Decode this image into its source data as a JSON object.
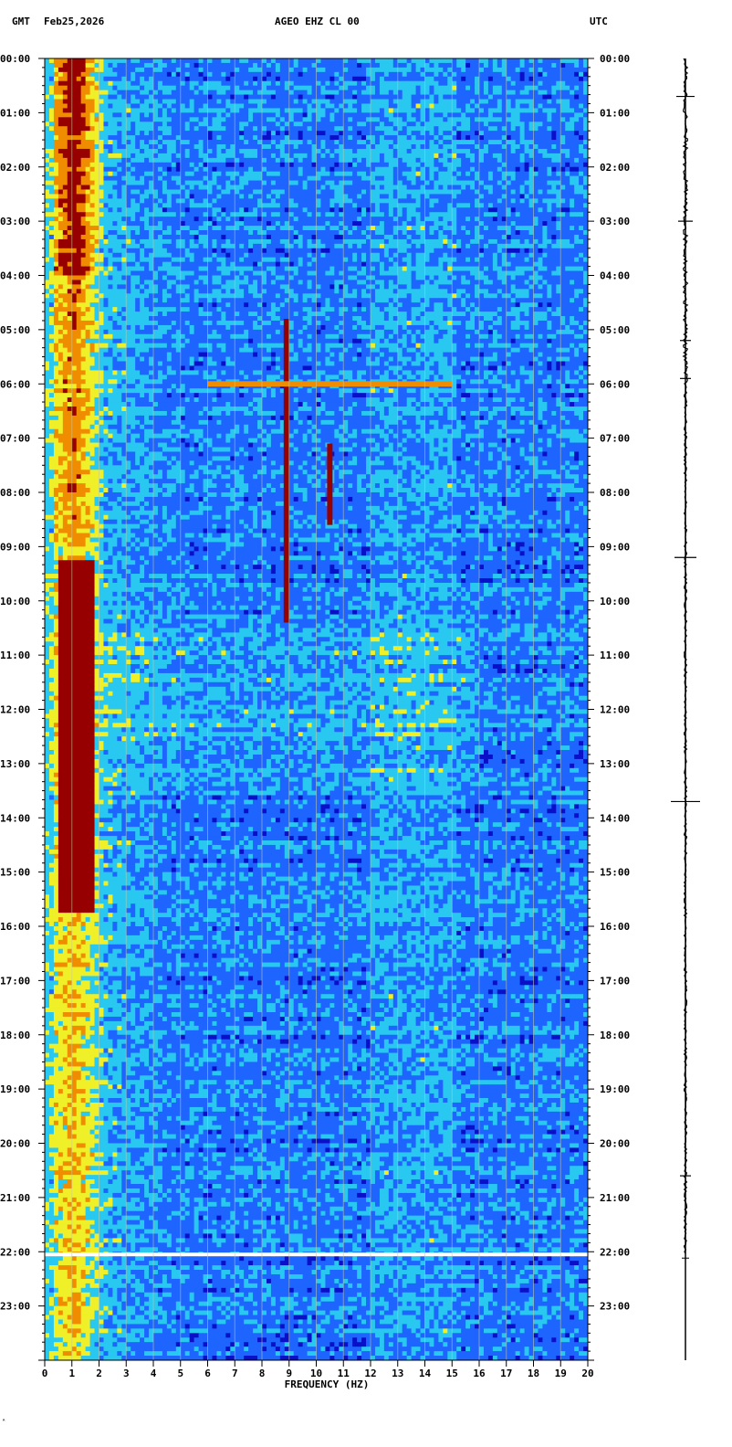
{
  "header": {
    "left_zone": "GMT",
    "date": "Feb25,2026",
    "station": "AGEO EHZ CL 00",
    "right_zone": "UTC"
  },
  "corner_mark": "ᴬ",
  "chart_data": {
    "type": "heatmap",
    "title": "AGEO EHZ CL 00",
    "xlabel": "FREQUENCY (HZ)",
    "ylabel": "",
    "xlim": [
      0,
      20
    ],
    "ylim_hours": [
      0,
      24
    ],
    "x_ticks": [
      "0",
      "1",
      "2",
      "3",
      "4",
      "5",
      "6",
      "7",
      "8",
      "9",
      "10",
      "11",
      "12",
      "13",
      "14",
      "15",
      "16",
      "17",
      "18",
      "19",
      "20"
    ],
    "y_ticks_left": [
      "00:00",
      "01:00",
      "02:00",
      "03:00",
      "04:00",
      "05:00",
      "06:00",
      "07:00",
      "08:00",
      "09:00",
      "10:00",
      "11:00",
      "12:00",
      "13:00",
      "14:00",
      "15:00",
      "16:00",
      "17:00",
      "18:00",
      "19:00",
      "20:00",
      "21:00",
      "22:00",
      "23:00"
    ],
    "y_ticks_right": [
      "00:00",
      "01:00",
      "02:00",
      "03:00",
      "04:00",
      "05:00",
      "06:00",
      "07:00",
      "08:00",
      "09:00",
      "10:00",
      "11:00",
      "12:00",
      "13:00",
      "14:00",
      "15:00",
      "16:00",
      "17:00",
      "18:00",
      "19:00",
      "20:00",
      "21:00",
      "22:00",
      "23:00"
    ],
    "colormap": [
      "#0a10c8",
      "#1e64ff",
      "#28c8f0",
      "#f0f028",
      "#f08c00",
      "#960000"
    ],
    "data_gap_hour": 22.05,
    "features": [
      {
        "name": "microseism band",
        "freq_range": [
          0.3,
          2.0
        ],
        "time_range": [
          0.0,
          24.0
        ],
        "level": "high"
      },
      {
        "name": "strong low-frequency swell",
        "freq_range": [
          0.5,
          1.8
        ],
        "time_range": [
          9.2,
          15.7
        ],
        "level": "very high"
      },
      {
        "name": "vertical line 8.9 Hz",
        "freq_range": [
          8.8,
          9.0
        ],
        "time_range": [
          4.8,
          10.4
        ],
        "level": "very high"
      },
      {
        "name": "vertical line 10.5 Hz",
        "freq_range": [
          10.4,
          10.6
        ],
        "time_range": [
          7.1,
          8.6
        ],
        "level": "very high"
      },
      {
        "name": "horizontal burst 6 Hz-15 Hz",
        "freq_range": [
          6.0,
          15.0
        ],
        "time_range": [
          5.95,
          6.05
        ],
        "level": "high"
      }
    ]
  }
}
